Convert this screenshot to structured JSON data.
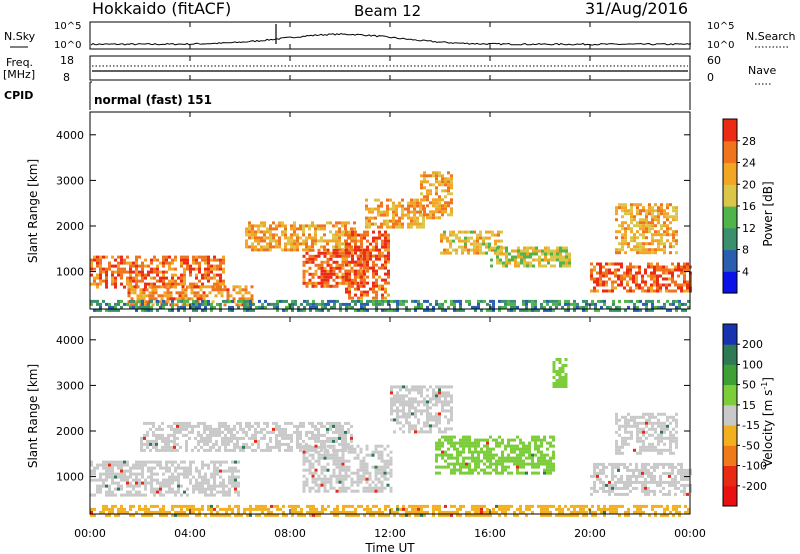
{
  "header": {
    "station": "Hokkaido (fitACF)",
    "beam": "Beam 12",
    "date": "31/Aug/2016"
  },
  "params": {
    "nsky_label": "N.Sky",
    "nsearch_label": "N.Search",
    "freq_label_1": "Freq.",
    "freq_label_2": "[MHz]",
    "nave_label": "Nave",
    "cpid_label": "CPID",
    "cpid_value": "normal (fast) 151",
    "noise_ticks_left": [
      "10^5",
      "10^0"
    ],
    "noise_ticks_right": [
      "10^5",
      "10^0"
    ],
    "freq_ticks": [
      "18",
      "8"
    ],
    "nave_ticks": [
      "60",
      "0"
    ]
  },
  "chart_data": [
    {
      "type": "heatmap",
      "quantity": "Power",
      "ylabel": "Slant Range [km]",
      "xlabel": "",
      "ylim": [
        180,
        4500
      ],
      "xlim_hours": [
        0,
        24
      ],
      "yticks": [
        "1000",
        "2000",
        "3000",
        "4000"
      ],
      "colorbar": {
        "label": "Power [dB]",
        "ticks": [
          "4",
          "8",
          "12",
          "16",
          "20",
          "24",
          "28"
        ],
        "colors": [
          "#0a12e8",
          "#2a5fb0",
          "#3b8f6c",
          "#4fb44a",
          "#dcc64a",
          "#f2a624",
          "#f0741d",
          "#ec2b15"
        ],
        "range": [
          0,
          32
        ]
      },
      "regions": [
        {
          "t0": 0.0,
          "t1": 5.3,
          "r0": 650,
          "r1": 1350,
          "value": 26
        },
        {
          "t0": 1.5,
          "t1": 6.5,
          "r0": 280,
          "r1": 700,
          "value": 24
        },
        {
          "t0": 6.2,
          "t1": 10.6,
          "r0": 1500,
          "r1": 2100,
          "value": 22
        },
        {
          "t0": 8.5,
          "t1": 11.0,
          "r0": 700,
          "r1": 1500,
          "value": 27
        },
        {
          "t0": 10.2,
          "t1": 12.0,
          "r0": 450,
          "r1": 1900,
          "value": 28
        },
        {
          "t0": 11.0,
          "t1": 13.4,
          "r0": 2000,
          "r1": 2600,
          "value": 22
        },
        {
          "t0": 13.2,
          "t1": 14.5,
          "r0": 2200,
          "r1": 3200,
          "value": 23
        },
        {
          "t0": 14.0,
          "t1": 16.5,
          "r0": 1400,
          "r1": 1900,
          "value": 20
        },
        {
          "t0": 16.0,
          "t1": 19.2,
          "r0": 1100,
          "r1": 1550,
          "value": 18
        },
        {
          "t0": 20.0,
          "t1": 24.0,
          "r0": 550,
          "r1": 1200,
          "value": 27
        },
        {
          "t0": 21.0,
          "t1": 23.5,
          "r0": 1400,
          "r1": 2500,
          "value": 21
        },
        {
          "t0": 0.0,
          "t1": 24.0,
          "r0": 180,
          "r1": 380,
          "value": 10
        }
      ]
    },
    {
      "type": "heatmap",
      "quantity": "Velocity",
      "ylabel": "Slant Range [km]",
      "xlabel": "Time UT",
      "ylim": [
        180,
        4500
      ],
      "xlim_hours": [
        0,
        24
      ],
      "yticks": [
        "1000",
        "2000",
        "3000",
        "4000"
      ],
      "xticks": [
        "00:00",
        "04:00",
        "08:00",
        "12:00",
        "16:00",
        "20:00",
        "00:00"
      ],
      "colorbar": {
        "label": "Velocity [m s",
        "label_exp": "-1",
        "label_close": "]",
        "ticks": [
          "200",
          "100",
          "50",
          "15",
          "-15",
          "-50",
          "-100",
          "-200"
        ],
        "colors": [
          "#1733b0",
          "#2e7a55",
          "#3da034",
          "#7ccd3a",
          "#c9c9c9",
          "#f2b020",
          "#ef7a1a",
          "#e82a14",
          "#e81010"
        ]
      },
      "regions": [
        {
          "t0": 0.0,
          "t1": 6.0,
          "r0": 600,
          "r1": 1350,
          "value": 0
        },
        {
          "t0": 2.0,
          "t1": 10.5,
          "r0": 1600,
          "r1": 2200,
          "value": 0
        },
        {
          "t0": 8.5,
          "t1": 12.0,
          "r0": 700,
          "r1": 1700,
          "value": 0
        },
        {
          "t0": 12.0,
          "t1": 14.5,
          "r0": 2000,
          "r1": 3000,
          "value": 0
        },
        {
          "t0": 13.8,
          "t1": 18.5,
          "r0": 1100,
          "r1": 1900,
          "value": 30
        },
        {
          "t0": 20.0,
          "t1": 24.0,
          "r0": 600,
          "r1": 1300,
          "value": 0
        },
        {
          "t0": 21.0,
          "t1": 23.5,
          "r0": 1500,
          "r1": 2400,
          "value": 0
        },
        {
          "t0": 18.5,
          "t1": 19.0,
          "r0": 3000,
          "r1": 3600,
          "value": 30
        },
        {
          "t0": 0.0,
          "t1": 24.0,
          "r0": 180,
          "r1": 380,
          "value": -30
        }
      ]
    }
  ]
}
